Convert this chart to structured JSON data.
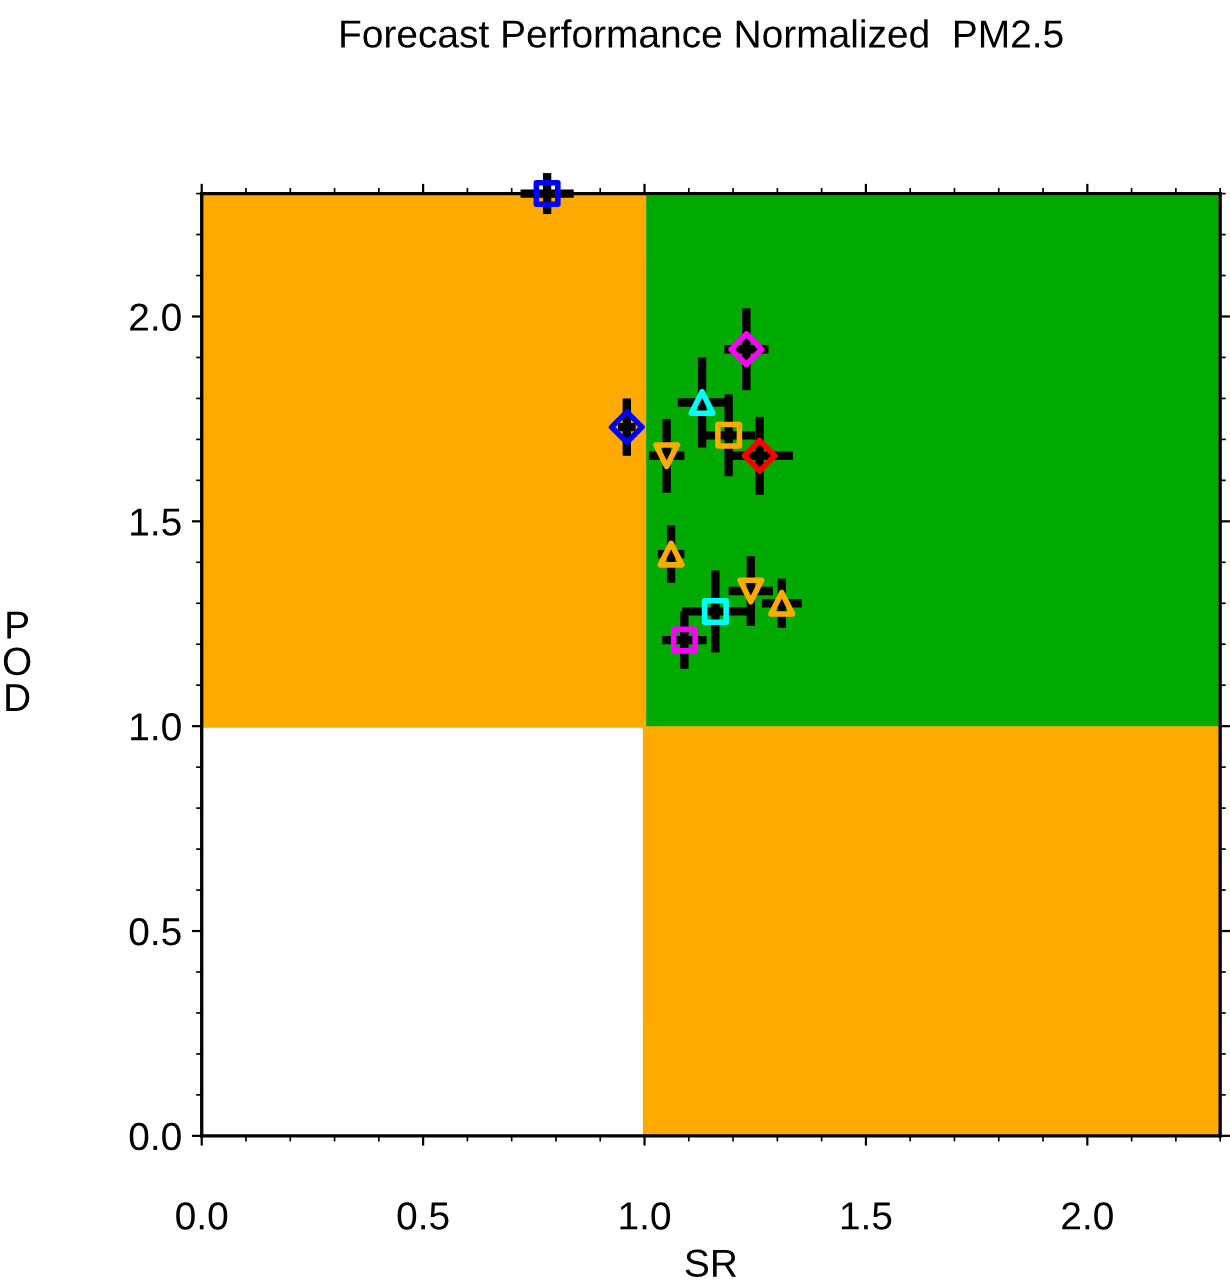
{
  "chart_data": {
    "type": "scatter",
    "title": "Forecast Performance Normalized  PM2.5",
    "xlabel": "SR",
    "ylabel": "POD",
    "xlim": [
      0,
      2.3
    ],
    "ylim": [
      0,
      2.3
    ],
    "xticks": [
      {
        "value": 0,
        "label": "0.0"
      },
      0.5,
      {
        "value": 1,
        "label": "1.0"
      },
      1.5,
      {
        "value": 2,
        "label": "2.0"
      }
    ],
    "yticks": [
      {
        "value": 0,
        "label": "0.0"
      },
      0.5,
      {
        "value": 1,
        "label": "1.0"
      },
      1.5,
      {
        "value": 2,
        "label": "2.0"
      }
    ],
    "grid": false,
    "legend": false,
    "bands": [
      {
        "axis": "y",
        "from": 1.0,
        "to": 2.3,
        "color": "#ffaa00"
      },
      {
        "axis": "x",
        "from": 1.0,
        "to": 2.3,
        "color": "#ffaa00"
      }
    ],
    "series": [
      {
        "color": "#0000ff",
        "marker": "square",
        "x": [
          0.78
        ],
        "values": [
          2.3
        ],
        "xerrors": [
          0.06
        ],
        "errors": [
          0.05
        ]
      },
      {
        "color": "#ff00ff",
        "marker": "diamond",
        "x": [
          1.23
        ],
        "values": [
          1.92
        ],
        "xerrors": [
          0.05
        ],
        "errors": [
          0.1
        ]
      },
      {
        "color": "#00ffff",
        "marker": "triangle",
        "x": [
          1.13
        ],
        "values": [
          1.79
        ],
        "xerrors": [
          0.055
        ],
        "errors": [
          0.11
        ]
      },
      {
        "color": "#ffaa00",
        "marker": "square",
        "x": [
          1.19
        ],
        "values": [
          1.71
        ],
        "xerrors": [
          0.06
        ],
        "errors": [
          0.1
        ]
      },
      {
        "color": "#ff0000",
        "marker": "diamond",
        "x": [
          1.26
        ],
        "values": [
          1.66
        ],
        "xerrors": [
          0.075
        ],
        "errors": [
          0.095
        ]
      },
      {
        "color": "#0000ff",
        "marker": "diamond",
        "x": [
          0.96
        ],
        "values": [
          1.73
        ],
        "xerrors": [
          0.02
        ],
        "errors": [
          0.07
        ]
      },
      {
        "color": "#ffaa00",
        "marker": "triangle_down",
        "x": [
          1.05
        ],
        "values": [
          1.66
        ],
        "xerrors": [
          0.04
        ],
        "errors": [
          0.09
        ]
      },
      {
        "color": "#ffaa00",
        "marker": "triangle",
        "x": [
          1.06
        ],
        "values": [
          1.42
        ],
        "xerrors": [
          0.03
        ],
        "errors": [
          0.07
        ]
      },
      {
        "color": "#ffaa00",
        "marker": "triangle_down",
        "x": [
          1.24
        ],
        "values": [
          1.33
        ],
        "xerrors": [
          0.05
        ],
        "errors": [
          0.085
        ]
      },
      {
        "color": "#ffaa00",
        "marker": "triangle",
        "x": [
          1.31
        ],
        "values": [
          1.3
        ],
        "xerrors": [
          0.045
        ],
        "errors": [
          0.06
        ]
      },
      {
        "color": "#00ffff",
        "marker": "square",
        "x": [
          1.16
        ],
        "values": [
          1.28
        ],
        "xerrors": [
          0.075
        ],
        "errors": [
          0.1
        ]
      },
      {
        "color": "#ff00ff",
        "marker": "square",
        "x": [
          1.09
        ],
        "values": [
          1.21
        ],
        "xerrors": [
          0.05
        ],
        "errors": [
          0.07
        ]
      }
    ]
  }
}
